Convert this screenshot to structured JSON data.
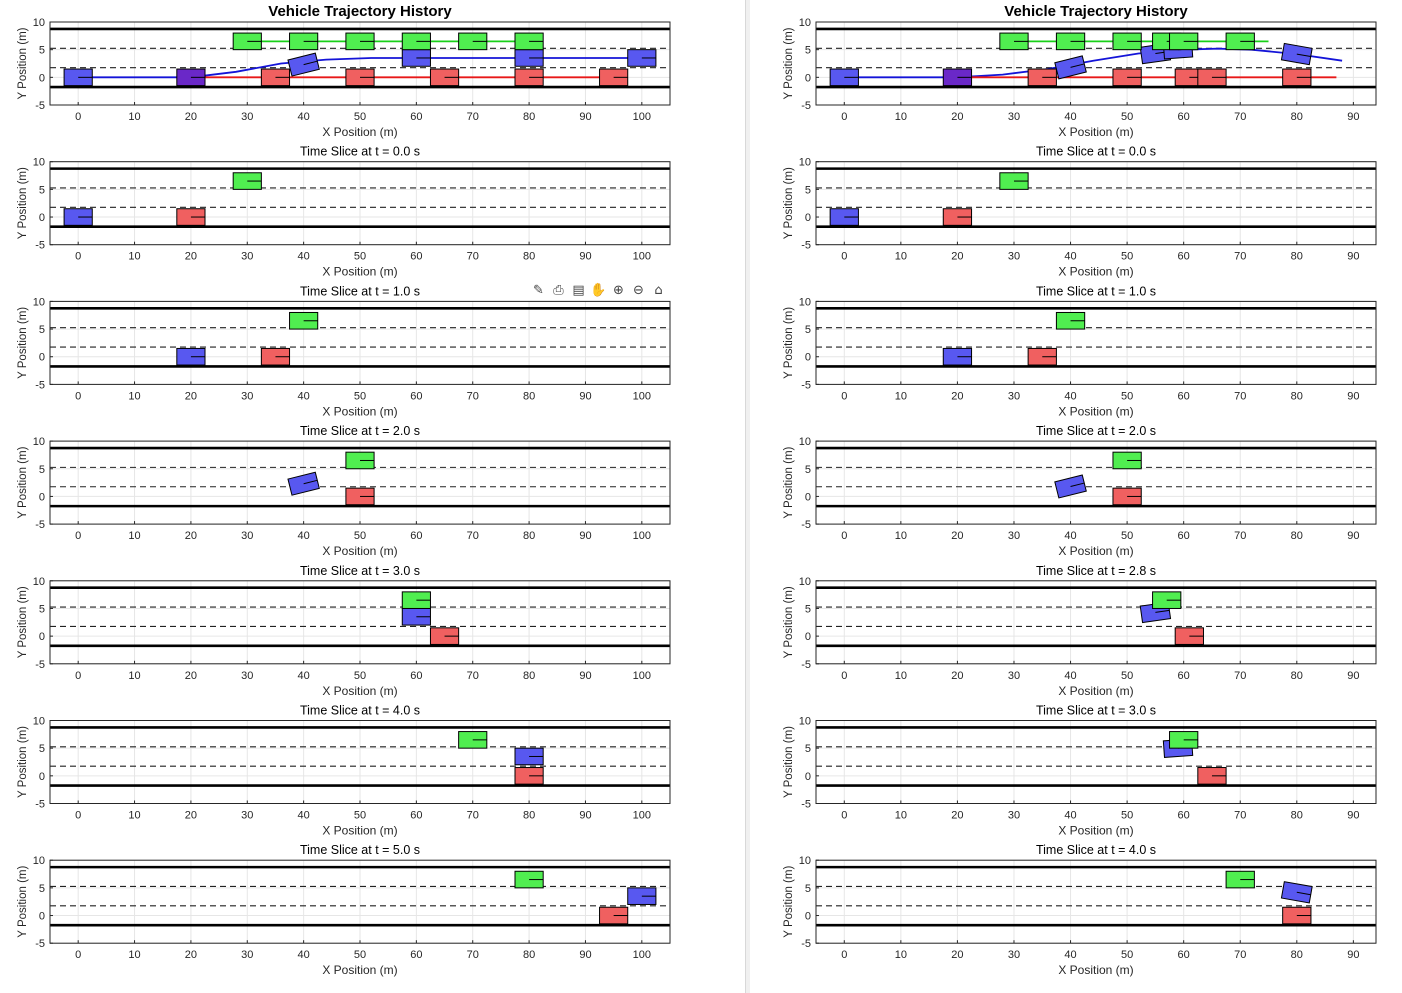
{
  "chart_data": [
    {
      "type": "scatter",
      "panel": "left",
      "x_ticks": [
        0,
        10,
        20,
        30,
        40,
        50,
        60,
        70,
        80,
        90,
        100
      ],
      "y_ticks": [
        -5,
        0,
        5,
        10
      ],
      "xlim": [
        -5,
        105
      ],
      "ylim": [
        -5,
        10
      ],
      "grid": true,
      "lane_boundaries_solid": [
        -1.75,
        8.75
      ],
      "lane_markings_dashed": [
        1.75,
        5.25
      ],
      "colors": {
        "ego": "#5858f0",
        "ego_line": "#1414d8",
        "red": "#f06060",
        "red_line": "#e81818",
        "green": "#50ee50",
        "green_line": "#18d018",
        "overlap": "#6a28c8"
      },
      "subplots": [
        {
          "title": "Vehicle Trajectory History",
          "xlabel": "X Position (m)",
          "ylabel": "Y Position (m)",
          "trails": [
            {
              "color": "ego_line",
              "points": [
                [
                  0,
                  0
                ],
                [
                  20,
                  0
                ],
                [
                  28,
                  1
                ],
                [
                  36,
                  2.5
                ],
                [
                  44,
                  3.2
                ],
                [
                  52,
                  3.5
                ],
                [
                  60,
                  3.5
                ],
                [
                  80,
                  3.5
                ],
                [
                  100,
                  3.5
                ]
              ]
            },
            {
              "color": "red_line",
              "points": [
                [
                  20,
                  0
                ],
                [
                  95,
                  0
                ]
              ]
            },
            {
              "color": "green_line",
              "points": [
                [
                  30,
                  6.5
                ],
                [
                  80,
                  6.5
                ]
              ]
            }
          ],
          "vehicles": [
            {
              "kind": "ego",
              "x": 0,
              "y": 0,
              "heading": 0
            },
            {
              "kind": "overlap",
              "x": 20,
              "y": 0,
              "heading": 0
            },
            {
              "kind": "ego",
              "x": 40,
              "y": 2.3,
              "heading": 14
            },
            {
              "kind": "ego",
              "x": 60,
              "y": 3.5,
              "heading": 0
            },
            {
              "kind": "ego",
              "x": 80,
              "y": 3.5,
              "heading": 0
            },
            {
              "kind": "ego",
              "x": 100,
              "y": 3.5,
              "heading": 0
            },
            {
              "kind": "red",
              "x": 35,
              "y": 0,
              "heading": 0
            },
            {
              "kind": "red",
              "x": 50,
              "y": 0,
              "heading": 0
            },
            {
              "kind": "red",
              "x": 65,
              "y": 0,
              "heading": 0
            },
            {
              "kind": "red",
              "x": 80,
              "y": 0,
              "heading": 0
            },
            {
              "kind": "red",
              "x": 95,
              "y": 0,
              "heading": 0
            },
            {
              "kind": "green",
              "x": 30,
              "y": 6.5,
              "heading": 0
            },
            {
              "kind": "green",
              "x": 40,
              "y": 6.5,
              "heading": 0
            },
            {
              "kind": "green",
              "x": 50,
              "y": 6.5,
              "heading": 0
            },
            {
              "kind": "green",
              "x": 60,
              "y": 6.5,
              "heading": 0
            },
            {
              "kind": "green",
              "x": 70,
              "y": 6.5,
              "heading": 0
            },
            {
              "kind": "green",
              "x": 80,
              "y": 6.5,
              "heading": 0
            }
          ]
        },
        {
          "title": "Time Slice at t = 0.0 s",
          "xlabel": "X Position (m)",
          "ylabel": "Y Position (m)",
          "trails": [],
          "vehicles": [
            {
              "kind": "ego",
              "x": 0,
              "y": 0,
              "heading": 0
            },
            {
              "kind": "red",
              "x": 20,
              "y": 0,
              "heading": 0
            },
            {
              "kind": "green",
              "x": 30,
              "y": 6.5,
              "heading": 0
            }
          ]
        },
        {
          "title": "Time Slice at t = 1.0 s",
          "xlabel": "X Position (m)",
          "ylabel": "Y Position (m)",
          "trails": [],
          "vehicles": [
            {
              "kind": "ego",
              "x": 20,
              "y": 0,
              "heading": 0
            },
            {
              "kind": "red",
              "x": 35,
              "y": 0,
              "heading": 0
            },
            {
              "kind": "green",
              "x": 40,
              "y": 6.5,
              "heading": 0
            }
          ]
        },
        {
          "title": "Time Slice at t = 2.0 s",
          "xlabel": "X Position (m)",
          "ylabel": "Y Position (m)",
          "trails": [],
          "vehicles": [
            {
              "kind": "ego",
              "x": 40,
              "y": 2.3,
              "heading": 14
            },
            {
              "kind": "red",
              "x": 50,
              "y": 0,
              "heading": 0
            },
            {
              "kind": "green",
              "x": 50,
              "y": 6.5,
              "heading": 0
            }
          ]
        },
        {
          "title": "Time Slice at t = 3.0 s",
          "xlabel": "X Position (m)",
          "ylabel": "Y Position (m)",
          "trails": [],
          "vehicles": [
            {
              "kind": "ego",
              "x": 60,
              "y": 3.5,
              "heading": 0
            },
            {
              "kind": "red",
              "x": 65,
              "y": 0,
              "heading": 0
            },
            {
              "kind": "green",
              "x": 60,
              "y": 6.5,
              "heading": 0
            }
          ]
        },
        {
          "title": "Time Slice at t = 4.0 s",
          "xlabel": "X Position (m)",
          "ylabel": "Y Position (m)",
          "trails": [],
          "vehicles": [
            {
              "kind": "ego",
              "x": 80,
              "y": 3.5,
              "heading": 0
            },
            {
              "kind": "red",
              "x": 80,
              "y": 0,
              "heading": 0
            },
            {
              "kind": "green",
              "x": 70,
              "y": 6.5,
              "heading": 0
            }
          ]
        },
        {
          "title": "Time Slice at t = 5.0 s",
          "xlabel": "X Position (m)",
          "ylabel": "Y Position (m)",
          "trails": [],
          "vehicles": [
            {
              "kind": "ego",
              "x": 100,
              "y": 3.5,
              "heading": 0
            },
            {
              "kind": "red",
              "x": 95,
              "y": 0,
              "heading": 0
            },
            {
              "kind": "green",
              "x": 80,
              "y": 6.5,
              "heading": 0
            }
          ]
        }
      ]
    },
    {
      "type": "scatter",
      "panel": "right",
      "x_ticks": [
        0,
        10,
        20,
        30,
        40,
        50,
        60,
        70,
        80,
        90
      ],
      "y_ticks": [
        -5,
        0,
        5,
        10
      ],
      "xlim": [
        -5,
        94
      ],
      "ylim": [
        -5,
        10
      ],
      "grid": true,
      "lane_boundaries_solid": [
        -1.75,
        8.75
      ],
      "lane_markings_dashed": [
        1.75,
        5.25
      ],
      "colors": {
        "ego": "#5858f0",
        "ego_line": "#1414d8",
        "red": "#f06060",
        "red_line": "#e81818",
        "green": "#50ee50",
        "green_line": "#18d018",
        "overlap": "#6a28c8"
      },
      "subplots": [
        {
          "title": "Vehicle Trajectory History",
          "xlabel": "X Position (m)",
          "ylabel": "Y Position (m)",
          "trails": [
            {
              "color": "ego_line",
              "points": [
                [
                  0,
                  0
                ],
                [
                  20,
                  0
                ],
                [
                  28,
                  0.5
                ],
                [
                  36,
                  1.5
                ],
                [
                  44,
                  3
                ],
                [
                  52,
                  4.3
                ],
                [
                  60,
                  5
                ],
                [
                  66,
                  5.2
                ],
                [
                  72,
                  5
                ],
                [
                  80,
                  4.2
                ],
                [
                  88,
                  3
                ]
              ]
            },
            {
              "color": "red_line",
              "points": [
                [
                  20,
                  0
                ],
                [
                  87,
                  0
                ]
              ]
            },
            {
              "color": "green_line",
              "points": [
                [
                  30,
                  6.5
                ],
                [
                  75,
                  6.5
                ]
              ]
            }
          ],
          "vehicles": [
            {
              "kind": "ego",
              "x": 0,
              "y": 0,
              "heading": 0
            },
            {
              "kind": "overlap",
              "x": 20,
              "y": 0,
              "heading": 0
            },
            {
              "kind": "ego",
              "x": 40,
              "y": 1.8,
              "heading": 14
            },
            {
              "kind": "ego",
              "x": 55,
              "y": 4.3,
              "heading": 8
            },
            {
              "kind": "ego",
              "x": 59,
              "y": 5,
              "heading": 4
            },
            {
              "kind": "ego",
              "x": 80,
              "y": 4.2,
              "heading": -10
            },
            {
              "kind": "red",
              "x": 35,
              "y": 0,
              "heading": 0
            },
            {
              "kind": "red",
              "x": 50,
              "y": 0,
              "heading": 0
            },
            {
              "kind": "red",
              "x": 61,
              "y": 0,
              "heading": 0
            },
            {
              "kind": "red",
              "x": 65,
              "y": 0,
              "heading": 0
            },
            {
              "kind": "red",
              "x": 80,
              "y": 0,
              "heading": 0
            },
            {
              "kind": "green",
              "x": 30,
              "y": 6.5,
              "heading": 0
            },
            {
              "kind": "green",
              "x": 40,
              "y": 6.5,
              "heading": 0
            },
            {
              "kind": "green",
              "x": 50,
              "y": 6.5,
              "heading": 0
            },
            {
              "kind": "green",
              "x": 57,
              "y": 6.5,
              "heading": 0
            },
            {
              "kind": "green",
              "x": 60,
              "y": 6.5,
              "heading": 0
            },
            {
              "kind": "green",
              "x": 70,
              "y": 6.5,
              "heading": 0
            }
          ]
        },
        {
          "title": "Time Slice at t = 0.0 s",
          "xlabel": "X Position (m)",
          "ylabel": "Y Position (m)",
          "trails": [],
          "vehicles": [
            {
              "kind": "ego",
              "x": 0,
              "y": 0,
              "heading": 0
            },
            {
              "kind": "red",
              "x": 20,
              "y": 0,
              "heading": 0
            },
            {
              "kind": "green",
              "x": 30,
              "y": 6.5,
              "heading": 0
            }
          ]
        },
        {
          "title": "Time Slice at t = 1.0 s",
          "xlabel": "X Position (m)",
          "ylabel": "Y Position (m)",
          "trails": [],
          "vehicles": [
            {
              "kind": "ego",
              "x": 20,
              "y": 0,
              "heading": 0
            },
            {
              "kind": "red",
              "x": 35,
              "y": 0,
              "heading": 0
            },
            {
              "kind": "green",
              "x": 40,
              "y": 6.5,
              "heading": 0
            }
          ]
        },
        {
          "title": "Time Slice at t = 2.0 s",
          "xlabel": "X Position (m)",
          "ylabel": "Y Position (m)",
          "trails": [],
          "vehicles": [
            {
              "kind": "ego",
              "x": 40,
              "y": 1.8,
              "heading": 14
            },
            {
              "kind": "red",
              "x": 50,
              "y": 0,
              "heading": 0
            },
            {
              "kind": "green",
              "x": 50,
              "y": 6.5,
              "heading": 0
            }
          ]
        },
        {
          "title": "Time Slice at t = 2.8 s",
          "xlabel": "X Position (m)",
          "ylabel": "Y Position (m)",
          "trails": [],
          "vehicles": [
            {
              "kind": "ego",
              "x": 55,
              "y": 4.3,
              "heading": 8
            },
            {
              "kind": "red",
              "x": 61,
              "y": 0,
              "heading": 0
            },
            {
              "kind": "green",
              "x": 57,
              "y": 6.5,
              "heading": 0
            }
          ]
        },
        {
          "title": "Time Slice at t = 3.0 s",
          "xlabel": "X Position (m)",
          "ylabel": "Y Position (m)",
          "trails": [],
          "vehicles": [
            {
              "kind": "ego",
              "x": 59,
              "y": 5,
              "heading": 4
            },
            {
              "kind": "red",
              "x": 65,
              "y": 0,
              "heading": 0
            },
            {
              "kind": "green",
              "x": 60,
              "y": 6.5,
              "heading": 0
            }
          ]
        },
        {
          "title": "Time Slice at t = 4.0 s",
          "xlabel": "X Position (m)",
          "ylabel": "Y Position (m)",
          "trails": [],
          "vehicles": [
            {
              "kind": "ego",
              "x": 80,
              "y": 4.2,
              "heading": -10
            },
            {
              "kind": "red",
              "x": 80,
              "y": 0,
              "heading": 0
            },
            {
              "kind": "green",
              "x": 70,
              "y": 6.5,
              "heading": 0
            }
          ]
        }
      ]
    }
  ],
  "toolbar": {
    "icons": [
      "brush-icon",
      "save-icon",
      "data-tips-icon",
      "pan-icon",
      "zoom-in-icon",
      "zoom-out-icon",
      "home-icon"
    ],
    "glyphs": [
      "✎",
      "⎙",
      "▤",
      "✋",
      "⊕",
      "⊖",
      "⌂"
    ]
  }
}
